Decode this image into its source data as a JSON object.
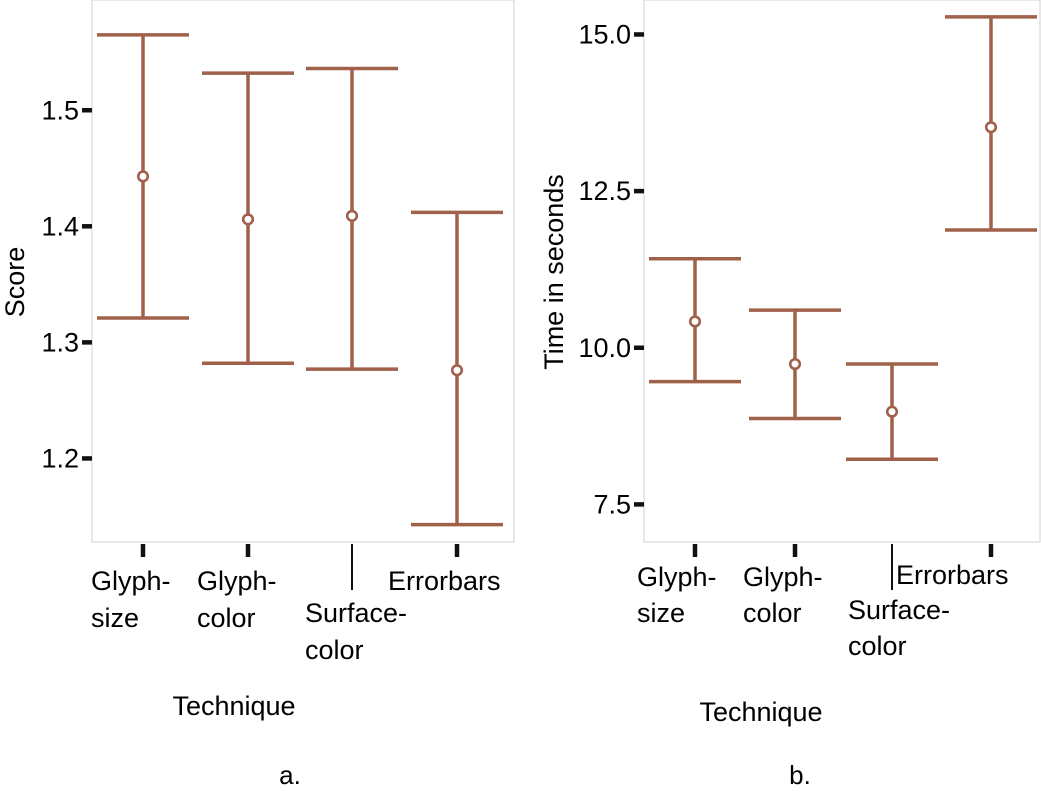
{
  "chart_data": [
    {
      "type": "errorbar",
      "caption": "a.",
      "xlabel": "Technique",
      "ylabel": "Score",
      "categories": [
        [
          "Glyph-",
          "size"
        ],
        [
          "Glyph-",
          "color"
        ],
        [
          "Surface-",
          "color"
        ],
        [
          "Errorbars"
        ]
      ],
      "means": [
        1.443,
        1.406,
        1.409,
        1.276
      ],
      "lower": [
        1.321,
        1.282,
        1.277,
        1.143
      ],
      "upper": [
        1.565,
        1.532,
        1.536,
        1.412
      ],
      "yticks": [
        "1.2",
        "1.3",
        "1.4",
        "1.5"
      ],
      "ylim": [
        1.128,
        1.595
      ],
      "grid": false,
      "color": "#a0614a"
    },
    {
      "type": "errorbar",
      "caption": "b.",
      "xlabel": "Technique",
      "ylabel": "Time in seconds",
      "categories": [
        [
          "Glyph-",
          "size"
        ],
        [
          "Glyph-",
          "color"
        ],
        [
          "Surface-",
          "color"
        ],
        [
          "Errorbars"
        ]
      ],
      "means": [
        10.42,
        9.74,
        8.98,
        13.52
      ],
      "lower": [
        9.46,
        8.87,
        8.22,
        11.88
      ],
      "upper": [
        11.42,
        10.6,
        9.74,
        15.28
      ],
      "yticks": [
        "7.5",
        "10.0",
        "12.5",
        "15.0"
      ],
      "ylim": [
        6.9,
        15.55
      ],
      "grid": false,
      "color": "#a0614a"
    }
  ]
}
